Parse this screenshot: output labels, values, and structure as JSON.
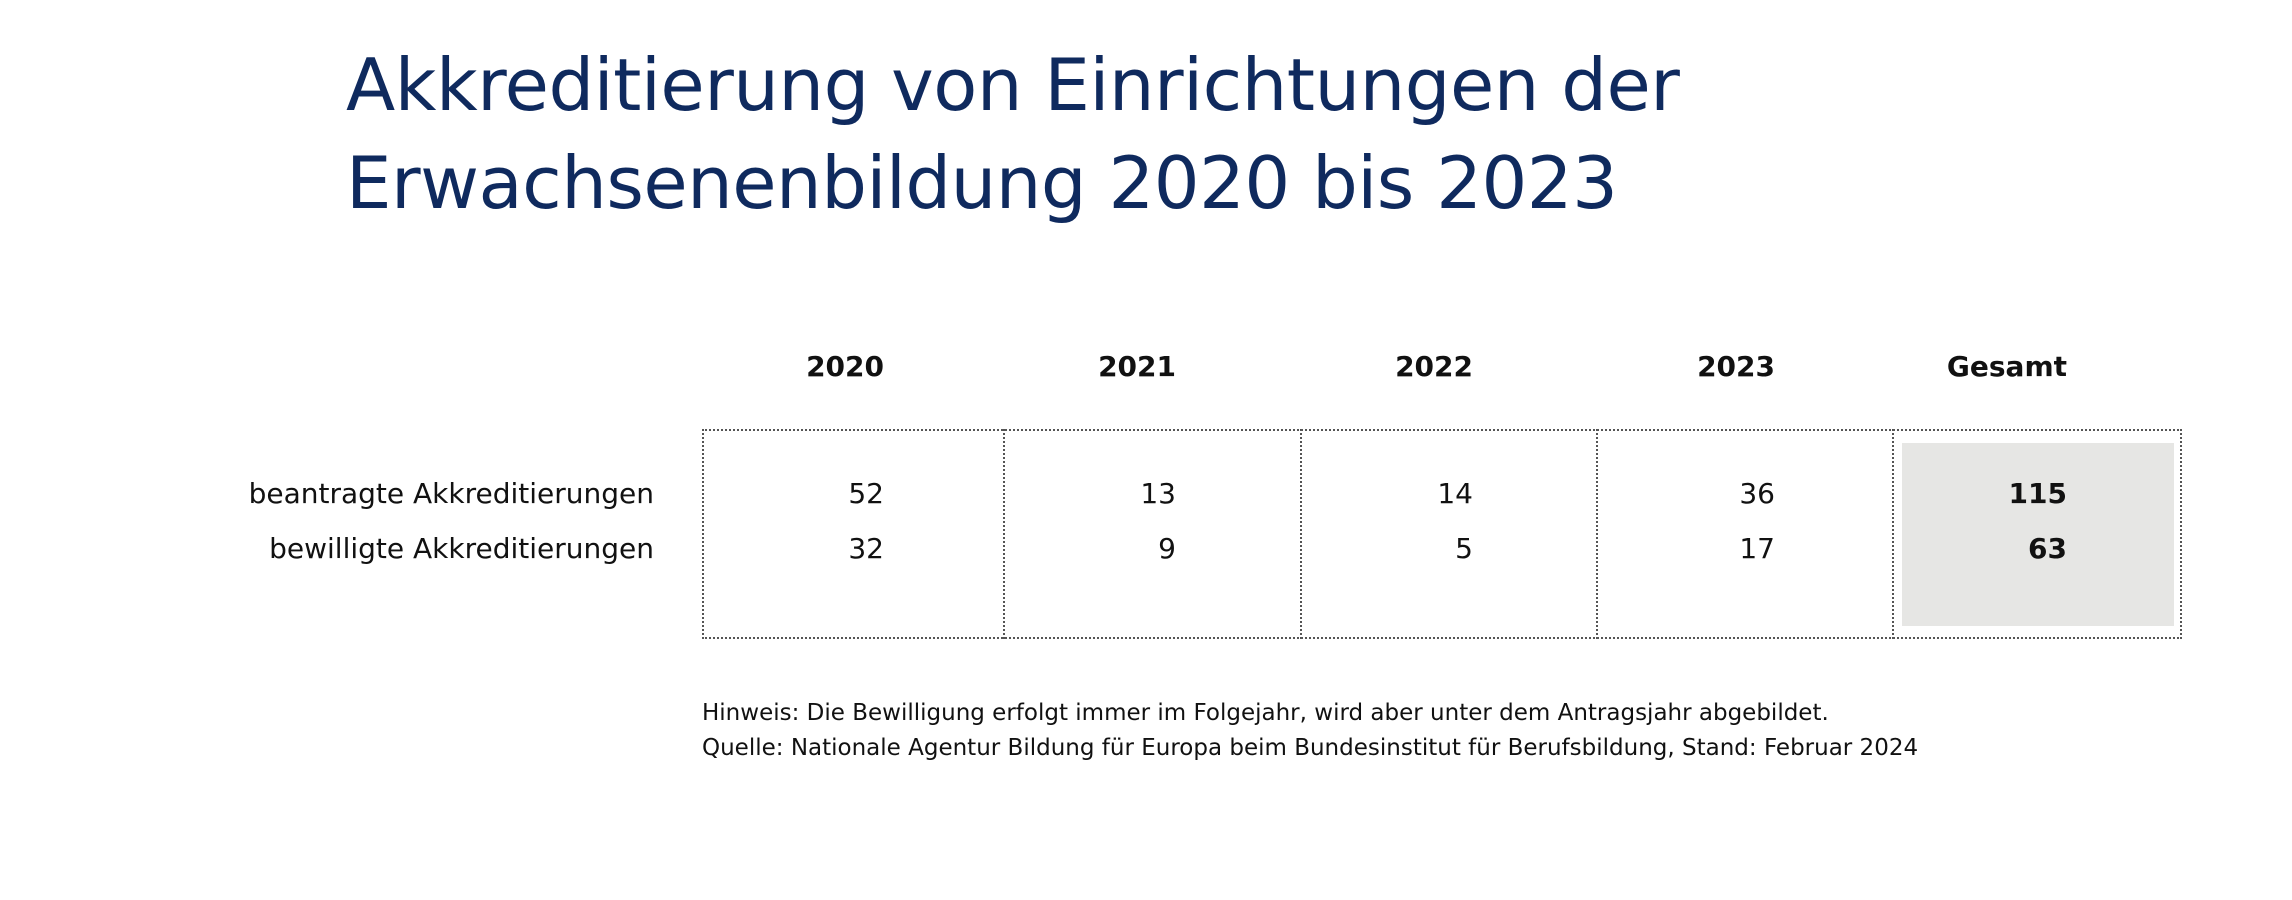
{
  "title_lines": [
    "Akkreditierung von Einrichtungen der",
    "Erwachsenenbildung 2020 bis 2023"
  ],
  "chart_data": {
    "type": "table",
    "columns": [
      "2020",
      "2021",
      "2022",
      "2023",
      "Gesamt"
    ],
    "rows": [
      {
        "label": "beantragte Akkreditierungen",
        "values": [
          "52",
          "13",
          "14",
          "36",
          "115"
        ]
      },
      {
        "label": "bewilligte Akkreditierungen",
        "values": [
          "32",
          "9",
          "5",
          "17",
          "63"
        ]
      }
    ],
    "highlight_column": "Gesamt",
    "highlight_color": "#e6e6e4"
  },
  "notes": [
    "Hinweis: Die Bewilligung erfolgt immer im Folgejahr, wird aber unter dem Antragsjahr abgebildet.",
    "Quelle: Nationale Agentur Bildung für Europa beim Bundesinstitut für Berufsbildung, Stand: Februar 2024"
  ],
  "colors": {
    "title": "#0f2a5e",
    "text": "#111111",
    "border": "#555555"
  }
}
